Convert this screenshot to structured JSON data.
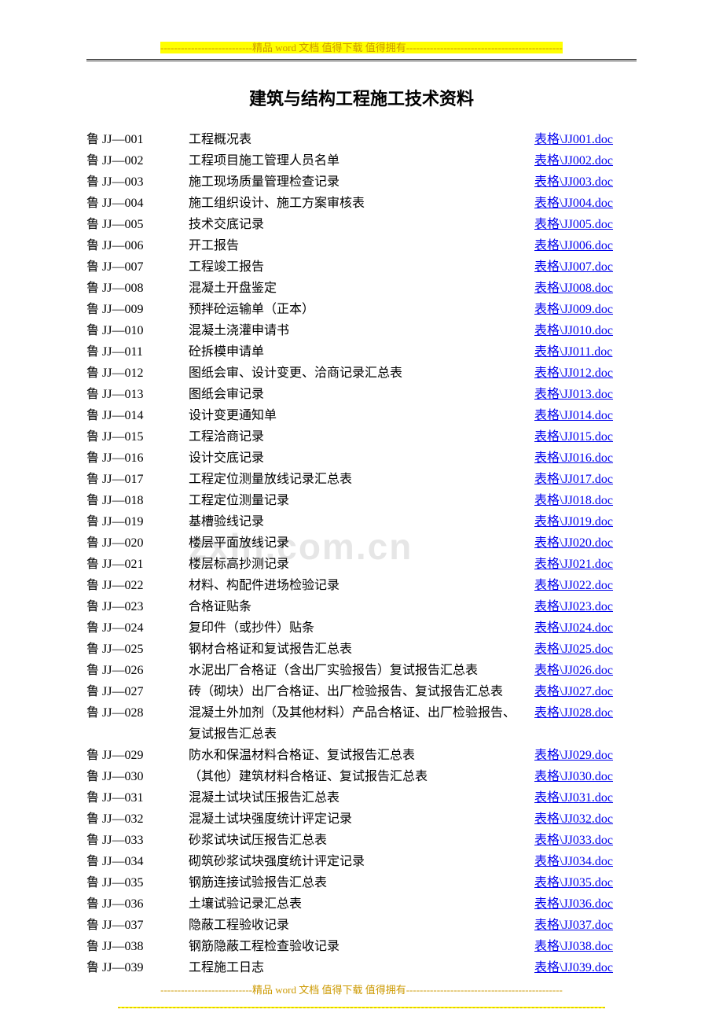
{
  "header": {
    "banner": "---------------------------精品 word 文档  值得下载  值得拥有----------------------------------------------"
  },
  "title": "建筑与结构工程施工技术资料",
  "watermark": "zxin.com.cn",
  "rows": [
    {
      "code": "鲁 JJ—001",
      "name": "工程概况表",
      "link": "表格\\JJ001.doc"
    },
    {
      "code": "鲁 JJ—002",
      "name": "工程项目施工管理人员名单",
      "link": "表格\\JJ002.doc"
    },
    {
      "code": "鲁 JJ—003",
      "name": "施工现场质量管理检查记录",
      "link": "表格\\JJ003.doc"
    },
    {
      "code": "鲁 JJ—004",
      "name": "施工组织设计、施工方案审核表",
      "link": "表格\\JJ004.doc"
    },
    {
      "code": "鲁 JJ—005",
      "name": "技术交底记录",
      "link": "表格\\JJ005.doc"
    },
    {
      "code": "鲁 JJ—006",
      "name": "开工报告",
      "link": "表格\\JJ006.doc"
    },
    {
      "code": "鲁 JJ—007",
      "name": "工程竣工报告",
      "link": "表格\\JJ007.doc"
    },
    {
      "code": "鲁 JJ—008",
      "name": "混凝土开盘鉴定",
      "link": "表格\\JJ008.doc"
    },
    {
      "code": "鲁 JJ—009",
      "name": "预拌砼运输单（正本）",
      "link": "表格\\JJ009.doc"
    },
    {
      "code": "鲁 JJ—010",
      "name": "混凝土浇灌申请书",
      "link": "表格\\JJ010.doc"
    },
    {
      "code": "鲁 JJ—011",
      "name": "砼拆模申请单",
      "link": "表格\\JJ011.doc"
    },
    {
      "code": "鲁 JJ—012",
      "name": "图纸会审、设计变更、洽商记录汇总表",
      "link": "表格\\JJ012.doc"
    },
    {
      "code": "鲁 JJ—013",
      "name": "图纸会审记录",
      "link": "表格\\JJ013.doc"
    },
    {
      "code": "鲁 JJ—014",
      "name": "设计变更通知单",
      "link": "表格\\JJ014.doc"
    },
    {
      "code": "鲁 JJ—015",
      "name": "工程洽商记录",
      "link": "表格\\JJ015.doc"
    },
    {
      "code": "鲁 JJ—016",
      "name": "设计交底记录",
      "link": "表格\\JJ016.doc"
    },
    {
      "code": "鲁 JJ—017",
      "name": "工程定位测量放线记录汇总表",
      "link": "表格\\JJ017.doc"
    },
    {
      "code": "鲁 JJ—018",
      "name": "工程定位测量记录",
      "link": "表格\\JJ018.doc"
    },
    {
      "code": "鲁 JJ—019",
      "name": "基槽验线记录",
      "link": "表格\\JJ019.doc"
    },
    {
      "code": "鲁 JJ—020",
      "name": "楼层平面放线记录",
      "link": "表格\\JJ020.doc"
    },
    {
      "code": "鲁 JJ—021",
      "name": "楼层标高抄测记录",
      "link": "表格\\JJ021.doc"
    },
    {
      "code": "鲁 JJ—022",
      "name": "材料、构配件进场检验记录",
      "link": "表格\\JJ022.doc"
    },
    {
      "code": "鲁 JJ—023",
      "name": "合格证贴条",
      "link": "表格\\JJ023.doc"
    },
    {
      "code": "鲁 JJ—024",
      "name": "复印件（或抄件）贴条",
      "link": "表格\\JJ024.doc"
    },
    {
      "code": "鲁 JJ—025",
      "name": "钢材合格证和复试报告汇总表",
      "link": "表格\\JJ025.doc"
    },
    {
      "code": "鲁 JJ—026",
      "name": "水泥出厂合格证（含出厂实验报告）复试报告汇总表",
      "link": "表格\\JJ026.doc"
    },
    {
      "code": "鲁 JJ—027",
      "name": "砖（砌块）出厂合格证、出厂检验报告、复试报告汇总表",
      "link": "表格\\JJ027.doc"
    },
    {
      "code": "鲁 JJ—028",
      "name": "混凝土外加剂（及其他材料）产品合格证、出厂检验报告、复试报告汇总表",
      "link": "表格\\JJ028.doc"
    },
    {
      "code": "鲁 JJ—029",
      "name": "防水和保温材料合格证、复试报告汇总表",
      "link": "表格\\JJ029.doc"
    },
    {
      "code": "鲁 JJ—030",
      "name": "（其他）建筑材料合格证、复试报告汇总表",
      "link": "表格\\JJ030.doc"
    },
    {
      "code": "鲁 JJ—031",
      "name": "混凝土试块试压报告汇总表",
      "link": "表格\\JJ031.doc"
    },
    {
      "code": "鲁 JJ—032",
      "name": "混凝土试块强度统计评定记录",
      "link": "表格\\JJ032.doc"
    },
    {
      "code": "鲁 JJ—033",
      "name": "砂浆试块试压报告汇总表",
      "link": "表格\\JJ033.doc"
    },
    {
      "code": "鲁 JJ—034",
      "name": "砌筑砂浆试块强度统计评定记录",
      "link": "表格\\JJ034.doc"
    },
    {
      "code": "鲁 JJ—035",
      "name": "钢筋连接试验报告汇总表",
      "link": "表格\\JJ035.doc"
    },
    {
      "code": "鲁 JJ—036",
      "name": "土壤试验记录汇总表",
      "link": "表格\\JJ036.doc"
    },
    {
      "code": "鲁 JJ—037",
      "name": "隐蔽工程验收记录",
      "link": "表格\\JJ037.doc"
    },
    {
      "code": "鲁 JJ—038",
      "name": "钢筋隐蔽工程检查验收记录",
      "link": "表格\\JJ038.doc"
    },
    {
      "code": "鲁 JJ—039",
      "name": "工程施工日志",
      "link": "表格\\JJ039.doc"
    }
  ],
  "footer": {
    "banner": "---------------------------精品 word 文档  值得下载  值得拥有----------------------------------------------"
  }
}
